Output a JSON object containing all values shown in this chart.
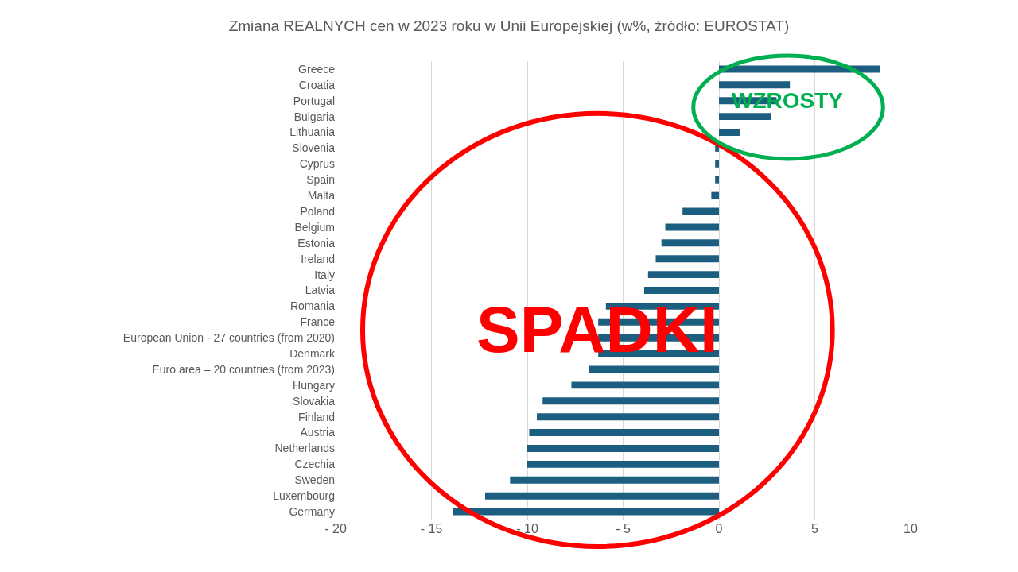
{
  "chart_data": {
    "type": "bar",
    "orientation": "horizontal",
    "title": "Zmiana REALNYCH cen w 2023 roku w Unii Europejskiej (w%, źródło: EUROSTAT)",
    "categories": [
      "Greece",
      "Croatia",
      "Portugal",
      "Bulgaria",
      "Lithuania",
      "Slovenia",
      "Cyprus",
      "Spain",
      "Malta",
      "Poland",
      "Belgium",
      "Estonia",
      "Ireland",
      "Italy",
      "Latvia",
      "Romania",
      "France",
      "European Union - 27 countries (from 2020)",
      "Denmark",
      "Euro area – 20 countries (from 2023)",
      "Hungary",
      "Slovakia",
      "Finland",
      "Austria",
      "Netherlands",
      "Czechia",
      "Sweden",
      "Luxembourg",
      "Germany"
    ],
    "values": [
      8.4,
      3.7,
      3.0,
      2.7,
      1.1,
      -0.2,
      -0.2,
      -0.2,
      -0.4,
      -1.9,
      -2.8,
      -3.0,
      -3.3,
      -3.7,
      -3.9,
      -5.9,
      -6.3,
      -6.3,
      -6.3,
      -6.8,
      -7.7,
      -9.2,
      -9.5,
      -9.9,
      -10.0,
      -10.0,
      -10.9,
      -12.2,
      -13.9
    ],
    "color": "#1b5e80",
    "xlim": [
      -20,
      10
    ],
    "xticks": [
      {
        "value": -20,
        "label": "- 20"
      },
      {
        "value": -15,
        "label": "- 15"
      },
      {
        "value": -10,
        "label": "- 10"
      },
      {
        "value": -5,
        "label": "- 5"
      },
      0,
      5,
      10
    ],
    "grid": "x",
    "annotations": [
      "SPADKI",
      "WZROSTY"
    ]
  }
}
